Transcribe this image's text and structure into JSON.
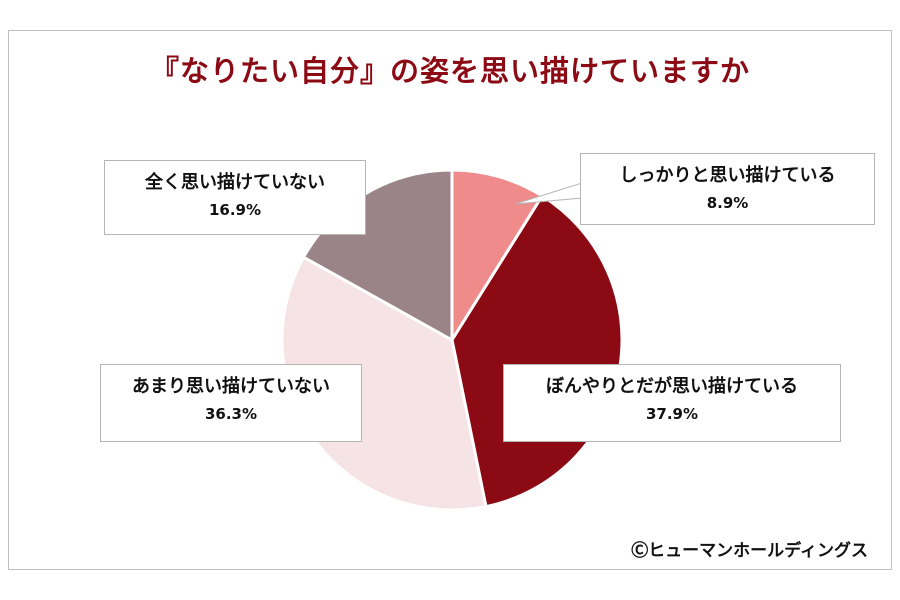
{
  "chart_data": {
    "type": "pie",
    "title": "『なりたい自分』の姿を思い描けていますか",
    "slices": [
      {
        "label": "しっかりと思い描けている",
        "value": 8.9,
        "value_label": "8.9%",
        "color": "#f08b8b"
      },
      {
        "label": "ぼんやりとだが思い描けている",
        "value": 37.9,
        "value_label": "37.9%",
        "color": "#8b0a14"
      },
      {
        "label": "あまり思い描けていない",
        "value": 36.3,
        "value_label": "36.3%",
        "color": "#f5e3e6"
      },
      {
        "label": "全く思い描けていない",
        "value": 16.9,
        "value_label": "16.9%",
        "color": "#9b8488"
      }
    ],
    "start_angle": "12 o'clock",
    "direction": "clockwise"
  },
  "copyright": "Ⓒヒューマンホールディングス"
}
